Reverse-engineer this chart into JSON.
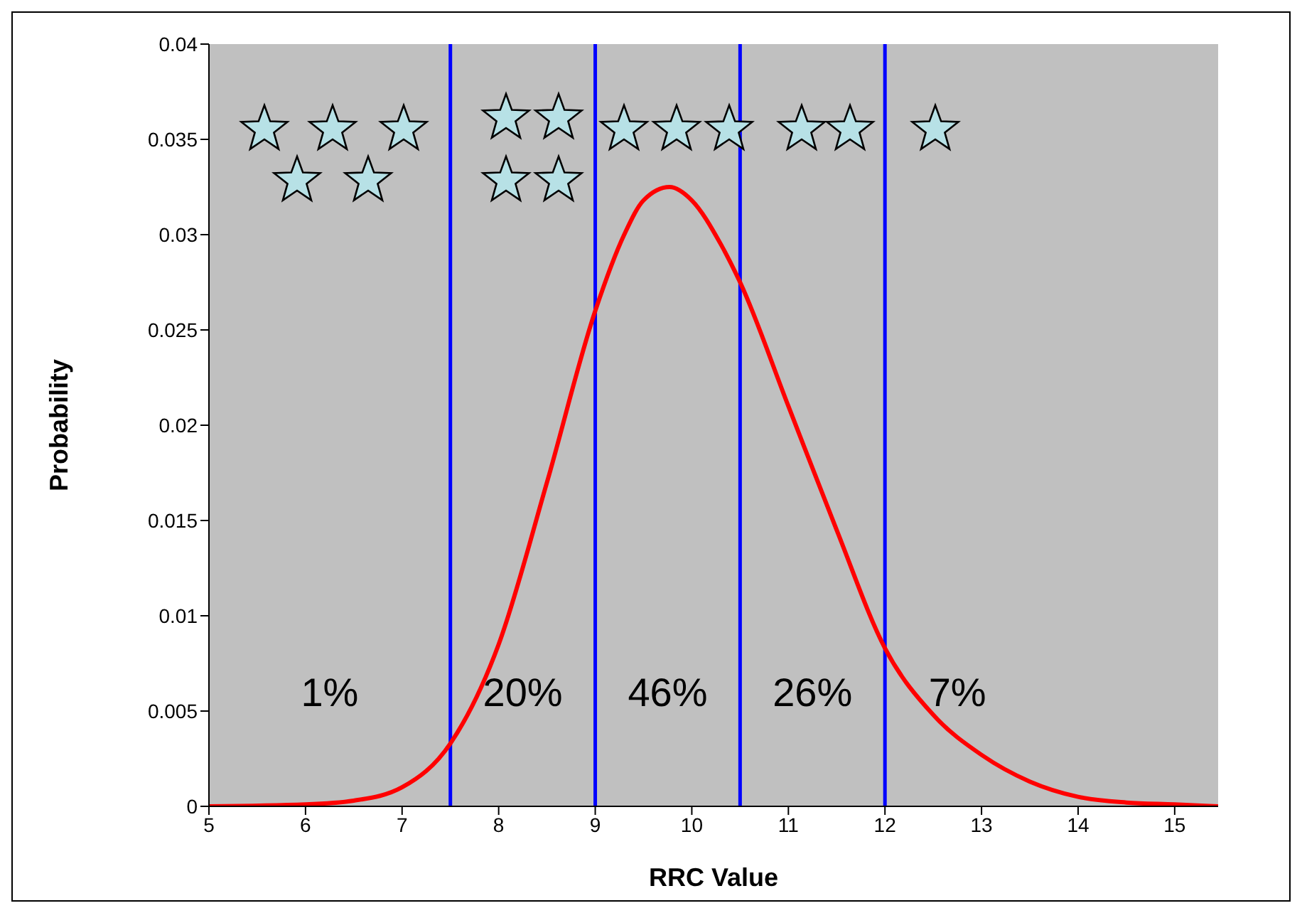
{
  "chart_data": {
    "type": "line",
    "xlabel": "RRC Value",
    "ylabel": "Probability",
    "x": [
      5,
      6,
      6.5,
      7,
      7.5,
      8,
      8.5,
      9,
      9.3,
      9.5,
      9.77,
      10,
      10.3,
      10.5,
      11,
      11.5,
      12,
      12.5,
      13,
      13.5,
      14,
      14.5,
      15,
      15.45
    ],
    "series": [
      {
        "color": "#ff0000",
        "values": [
          0,
          0.0001,
          0.0003,
          0.001,
          0.0033,
          0.0085,
          0.017,
          0.026,
          0.03,
          0.0318,
          0.0325,
          0.0318,
          0.0295,
          0.0275,
          0.021,
          0.0145,
          0.0083,
          0.0048,
          0.0027,
          0.0013,
          0.0005,
          0.0002,
          0.0001,
          0
        ]
      }
    ],
    "xlim": [
      5,
      15.45
    ],
    "xticks": [
      5,
      6,
      7,
      8,
      9,
      10,
      11,
      12,
      13,
      14,
      15
    ],
    "ylim": [
      0,
      0.04
    ],
    "yticks": [
      0,
      0.005,
      0.01,
      0.015,
      0.02,
      0.025,
      0.03,
      0.035,
      0.04
    ],
    "marker": "none",
    "line_style": "solid",
    "legend": false,
    "ref_lines": [
      {
        "axis": "x",
        "value": 7.5,
        "color": "#0000ff"
      },
      {
        "axis": "x",
        "value": 9,
        "color": "#0000ff"
      },
      {
        "axis": "x",
        "value": 10.5,
        "color": "#0000ff"
      },
      {
        "axis": "x",
        "value": 12,
        "color": "#0000ff"
      }
    ],
    "annotations": [
      "1%",
      "20%",
      "46%",
      "26%",
      "7%"
    ]
  }
}
